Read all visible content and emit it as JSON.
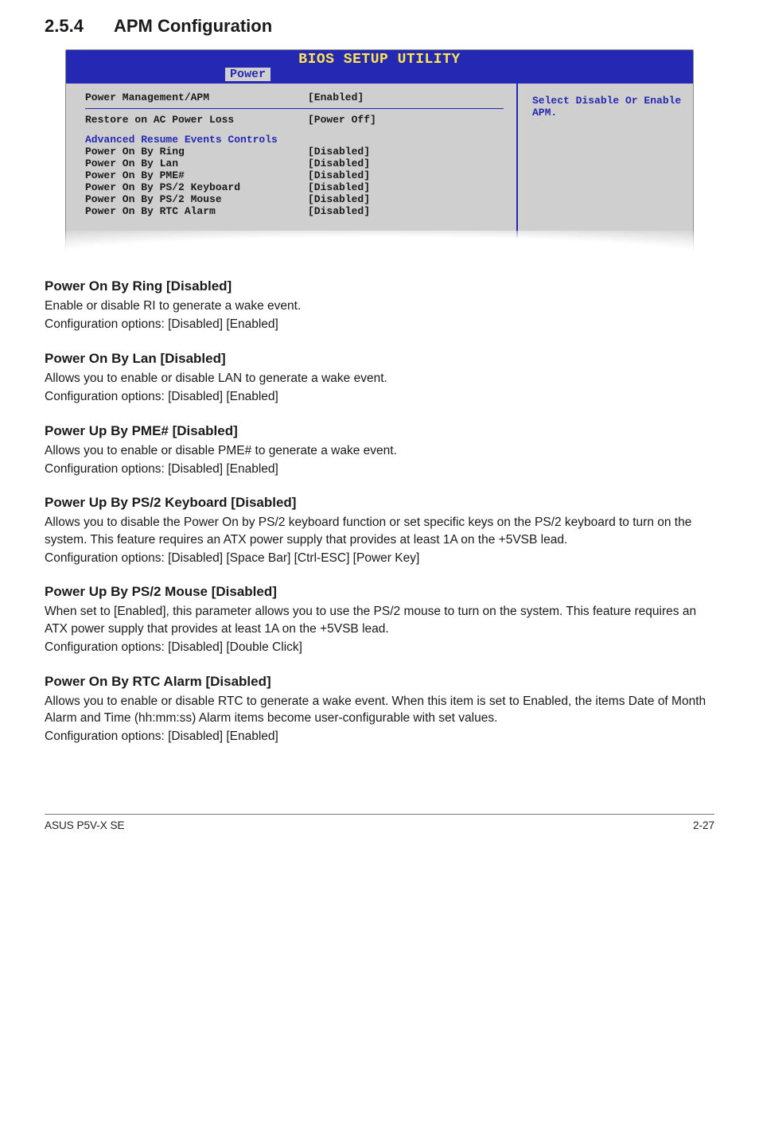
{
  "section": {
    "number": "2.5.4",
    "title": "APM Configuration"
  },
  "bios": {
    "title": "BIOS SETUP UTILITY",
    "tab": "Power",
    "help": "Select Disable Or Enable APM.",
    "rows_top": [
      {
        "label": "Power Management/APM",
        "value": "[Enabled]"
      }
    ],
    "rows_mid": [
      {
        "label": "Restore on AC Power Loss",
        "value": "[Power Off]"
      }
    ],
    "section_label": "Advanced Resume Events Controls",
    "rows_bottom": [
      {
        "label": "Power On By Ring",
        "value": "[Disabled]"
      },
      {
        "label": "Power On By Lan",
        "value": "[Disabled]"
      },
      {
        "label": "Power On By PME#",
        "value": "[Disabled]"
      },
      {
        "label": "Power On By PS/2 Keyboard",
        "value": "[Disabled]"
      },
      {
        "label": "Power On By PS/2 Mouse",
        "value": "[Disabled]"
      },
      {
        "label": "Power On By RTC Alarm",
        "value": "[Disabled]"
      }
    ]
  },
  "subsections": [
    {
      "heading": "Power On By Ring [Disabled]",
      "paras": [
        "Enable or disable RI to generate a wake event.",
        "Configuration options: [Disabled] [Enabled]"
      ]
    },
    {
      "heading": "Power On By Lan [Disabled]",
      "paras": [
        "Allows you to enable or disable LAN to generate a wake event.",
        "Configuration options: [Disabled] [Enabled]"
      ]
    },
    {
      "heading": "Power Up By PME# [Disabled]",
      "paras": [
        "Allows you to enable or disable PME# to generate a wake event.",
        "Configuration options: [Disabled] [Enabled]"
      ]
    },
    {
      "heading": "Power Up By PS/2 Keyboard [Disabled]",
      "paras": [
        "Allows you to disable the Power On by PS/2 keyboard function or set specific keys on the PS/2 keyboard to turn on the system. This feature requires an ATX power supply that provides at least 1A on the +5VSB lead.",
        "Configuration options: [Disabled] [Space Bar] [Ctrl-ESC] [Power Key]"
      ]
    },
    {
      "heading": "Power Up By PS/2 Mouse [Disabled]",
      "paras": [
        "When set to [Enabled], this parameter allows you to use the PS/2 mouse to turn on the system. This feature requires an ATX power supply that provides at least 1A on the +5VSB lead.",
        "Configuration options: [Disabled] [Double Click]"
      ]
    },
    {
      "heading": "Power On By RTC Alarm [Disabled]",
      "paras": [
        "Allows you to enable or disable RTC to generate a wake event. When this item is set to Enabled, the items Date of Month Alarm and Time (hh:mm:ss) Alarm items become user-configurable with set values.",
        "Configuration options: [Disabled] [Enabled]"
      ]
    }
  ],
  "footer": {
    "left": "ASUS P5V-X SE",
    "right": "2-27"
  }
}
